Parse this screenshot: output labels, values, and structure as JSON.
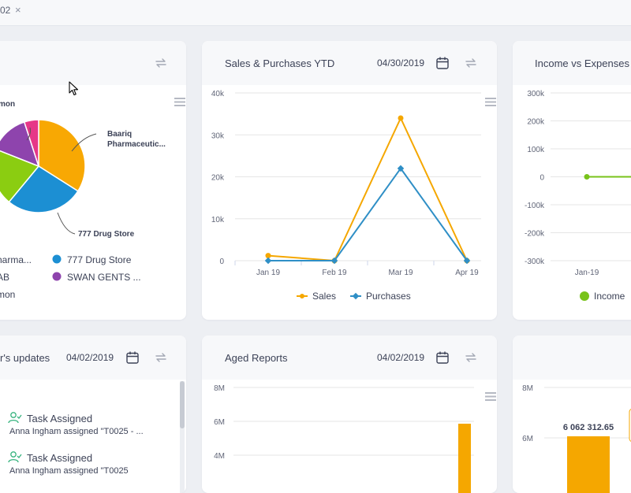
{
  "tab": {
    "label": "02",
    "close_glyph": "×"
  },
  "colors": {
    "sales": "#f5a700",
    "purchases": "#2f8fc6",
    "income": "#78c31a",
    "pie": [
      "#f8a803",
      "#1c8fd3",
      "#8bcd11",
      "#8e44ad",
      "#e63788"
    ]
  },
  "pie_card": {
    "chart_data": {
      "type": "pie",
      "slices": [
        {
          "name": "Baariq Pharmaceutic...",
          "value": 34,
          "color": "#f8a803"
        },
        {
          "name": "777 Drug Store",
          "value": 27,
          "color": "#1c8fd3"
        },
        {
          "name": "AB",
          "value": 20,
          "color": "#8bcd11"
        },
        {
          "name": "SWAN GENTS ...",
          "value": 14,
          "color": "#8e44ad"
        },
        {
          "name": "mon",
          "value": 5,
          "color": "#e63788"
        }
      ]
    },
    "labels": {
      "top_left": "mon",
      "right_1": "Baariq",
      "right_2": "Pharmaceutic...",
      "bottom": "777 Drug Store"
    },
    "legend": [
      {
        "label": "harma...",
        "color": "#f8a803"
      },
      {
        "label": "777 Drug Store",
        "color": "#1c8fd3"
      },
      {
        "label": "AB",
        "color": "#8bcd11"
      },
      {
        "label": "SWAN GENTS ...",
        "color": "#8e44ad"
      },
      {
        "label": "mon",
        "color": "#e63788"
      }
    ]
  },
  "sales_card": {
    "title": "Sales & Purchases YTD",
    "date": "04/30/2019",
    "chart_data": {
      "type": "line",
      "x": [
        "Jan 19",
        "Feb 19",
        "Mar 19",
        "Apr 19"
      ],
      "yticks": [
        "0",
        "10k",
        "20k",
        "30k",
        "40k"
      ],
      "ylim": [
        0,
        40000
      ],
      "series": [
        {
          "name": "Sales",
          "values": [
            1200,
            0,
            34000,
            0
          ],
          "color": "#f5a700"
        },
        {
          "name": "Purchases",
          "values": [
            0,
            0,
            22000,
            0
          ],
          "color": "#2f8fc6"
        }
      ]
    }
  },
  "income_card": {
    "title": "Income vs Expenses",
    "chart_data": {
      "type": "line",
      "x": [
        "Jan-19"
      ],
      "yticks": [
        "300k",
        "200k",
        "100k",
        "0",
        "-100k",
        "-200k",
        "-300k"
      ],
      "ylim": [
        -300000,
        300000
      ],
      "series": [
        {
          "name": "Income",
          "values": [
            0
          ],
          "color": "#78c31a"
        }
      ]
    }
  },
  "updates_card": {
    "title": "r's updates",
    "date": "04/02/2019",
    "items": [
      {
        "title": "Task Assigned",
        "subtitle": "Anna Ingham assigned \"T0025 - ..."
      },
      {
        "title": "Task Assigned",
        "subtitle": "Anna Ingham assigned \"T0025"
      }
    ]
  },
  "aged_card": {
    "title": "Aged Reports",
    "date": "04/02/2019",
    "chart_data": {
      "type": "bar",
      "yticks": [
        "8M",
        "6M",
        "4M"
      ],
      "ylim": [
        0,
        8000000
      ]
    }
  },
  "br_card": {
    "chart_data": {
      "type": "bar",
      "yticks": [
        "8M",
        "6M"
      ],
      "values": [
        6062312.65
      ],
      "value_label": "6 062 312.65",
      "ylim": [
        0,
        8000000
      ]
    }
  }
}
